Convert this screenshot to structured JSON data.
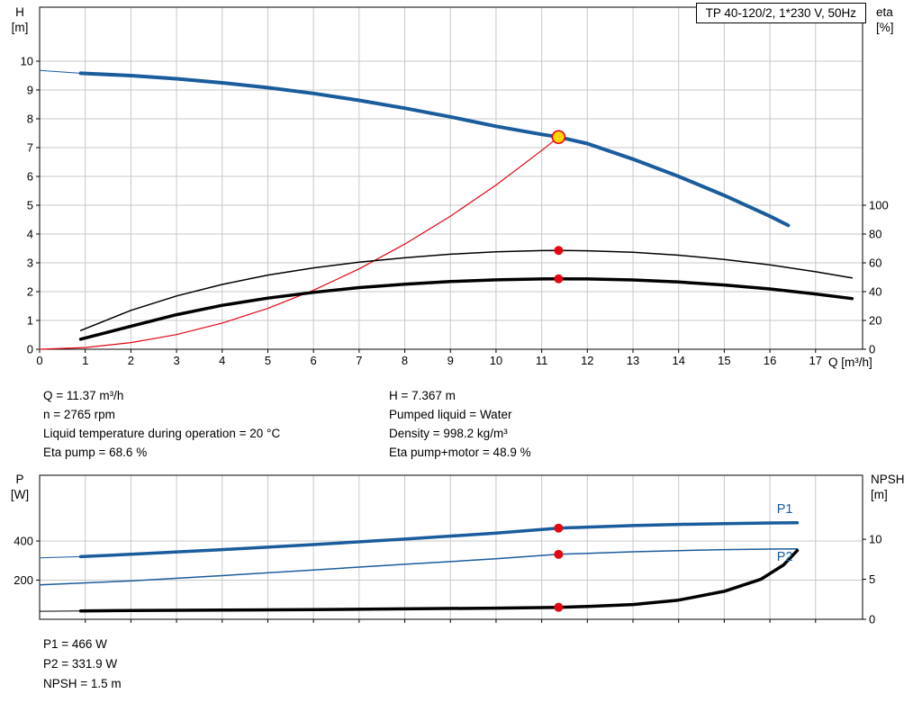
{
  "colors": {
    "blue": "#1a5c9c",
    "red": "#e30613",
    "black": "#000000",
    "grid": "#c8c8c8",
    "marker_red": "#e30613",
    "marker_yellow": "#ffd400"
  },
  "operating_point": {
    "left_column": [
      "Q = 11.37 m³/h",
      "n = 2765 rpm",
      "Liquid temperature during operation = 20 °C",
      "Eta pump = 68.6 %"
    ],
    "right_column": [
      "H = 7.367 m",
      "Pumped liquid = Water",
      "Density = 998.2 kg/m³",
      "Eta pump+motor = 48.9 %"
    ],
    "power_block": [
      "P1 = 466 W",
      "P2 = 331.9 W",
      "NPSH = 1.5 m"
    ]
  },
  "chart_data": [
    {
      "type": "line",
      "title": "TP 40-120/2, 1*230 V, 50Hz",
      "x_label": "Q [m³/h]",
      "y_left_label": "H\n[m]",
      "y_right_label": "eta\n[%]",
      "x_range": [
        0,
        18.03
      ],
      "y_left_range": [
        0,
        11.875
      ],
      "y_right_range": [
        0,
        237.5
      ],
      "x_ticks": [
        0,
        1,
        2,
        3,
        4,
        5,
        6,
        7,
        8,
        9,
        10,
        11,
        12,
        13,
        14,
        15,
        16,
        17
      ],
      "y_left_ticks": [
        0,
        1,
        2,
        3,
        4,
        5,
        6,
        7,
        8,
        9,
        10
      ],
      "y_right_ticks": [
        0,
        20,
        40,
        60,
        80,
        100
      ],
      "show_x_tick_labels": true,
      "grid": true,
      "series": [
        {
          "name": "hq-extrapolation",
          "axis": "left",
          "color": "blue",
          "width": 1,
          "points": [
            [
              0,
              9.68
            ],
            [
              0.9,
              9.58
            ]
          ]
        },
        {
          "name": "hq-curve",
          "axis": "left",
          "color": "blue",
          "width": 4,
          "points": [
            [
              0.9,
              9.58
            ],
            [
              2,
              9.5
            ],
            [
              3,
              9.39
            ],
            [
              4,
              9.25
            ],
            [
              5,
              9.08
            ],
            [
              6,
              8.88
            ],
            [
              7,
              8.64
            ],
            [
              8,
              8.37
            ],
            [
              9,
              8.07
            ],
            [
              10,
              7.74
            ],
            [
              11,
              7.46
            ],
            [
              11.37,
              7.37
            ],
            [
              12,
              7.14
            ],
            [
              13,
              6.6
            ],
            [
              14,
              6.0
            ],
            [
              15,
              5.34
            ],
            [
              16,
              4.62
            ],
            [
              16.4,
              4.3
            ]
          ]
        },
        {
          "name": "system-curve",
          "axis": "left",
          "color": "red",
          "width": 1.2,
          "points": [
            [
              0,
              0
            ],
            [
              1,
              0.06
            ],
            [
              2,
              0.23
            ],
            [
              3,
              0.51
            ],
            [
              4,
              0.91
            ],
            [
              5,
              1.42
            ],
            [
              6,
              2.05
            ],
            [
              7,
              2.79
            ],
            [
              8,
              3.65
            ],
            [
              9,
              4.62
            ],
            [
              10,
              5.7
            ],
            [
              11,
              6.9
            ],
            [
              11.37,
              7.37
            ]
          ]
        },
        {
          "name": "eta-pump-curve",
          "axis": "right",
          "color": "black",
          "width": 1.5,
          "points": [
            [
              0.9,
              13
            ],
            [
              2,
              27
            ],
            [
              3,
              37
            ],
            [
              4,
              45
            ],
            [
              5,
              51.5
            ],
            [
              6,
              56.5
            ],
            [
              7,
              60.5
            ],
            [
              8,
              63.5
            ],
            [
              9,
              66
            ],
            [
              10,
              67.6
            ],
            [
              11,
              68.5
            ],
            [
              11.37,
              68.6
            ],
            [
              12,
              68.4
            ],
            [
              13,
              67.3
            ],
            [
              14,
              65.3
            ],
            [
              15,
              62.4
            ],
            [
              16,
              58.6
            ],
            [
              17,
              53.8
            ],
            [
              17.8,
              49.5
            ]
          ]
        },
        {
          "name": "eta-pump-motor-curve",
          "axis": "right",
          "color": "black",
          "width": 3.5,
          "points": [
            [
              0.9,
              7
            ],
            [
              2,
              16
            ],
            [
              3,
              24
            ],
            [
              4,
              30.5
            ],
            [
              5,
              35.5
            ],
            [
              6,
              39.5
            ],
            [
              7,
              42.8
            ],
            [
              8,
              45.2
            ],
            [
              9,
              47
            ],
            [
              10,
              48.2
            ],
            [
              11,
              48.8
            ],
            [
              11.37,
              48.9
            ],
            [
              12,
              48.8
            ],
            [
              13,
              48.1
            ],
            [
              14,
              46.7
            ],
            [
              15,
              44.6
            ],
            [
              16,
              41.9
            ],
            [
              17,
              38.4
            ],
            [
              17.8,
              35.2
            ]
          ]
        }
      ],
      "markers": [
        {
          "x": 11.37,
          "y": 7.367,
          "axis": "left",
          "style": "duty",
          "name": "duty-point-marker"
        },
        {
          "x": 11.37,
          "y": 68.6,
          "axis": "right",
          "style": "dot",
          "name": "eta-pump-operating-dot"
        },
        {
          "x": 11.37,
          "y": 48.9,
          "axis": "right",
          "style": "dot",
          "name": "eta-pump-motor-operating-dot"
        }
      ],
      "curve_labels": []
    },
    {
      "type": "line",
      "title": "",
      "x_label": "",
      "y_left_label": "P\n[W]",
      "y_right_label": "NPSH\n[m]",
      "x_range": [
        0,
        18.03
      ],
      "y_left_range": [
        0,
        736
      ],
      "y_right_range": [
        0,
        18
      ],
      "x_ticks": [
        1,
        2,
        3,
        4,
        5,
        6,
        7,
        8,
        9,
        10,
        11,
        12,
        13,
        14,
        15,
        16,
        17
      ],
      "y_left_ticks": [
        200,
        400
      ],
      "y_right_ticks": [
        0,
        5,
        10
      ],
      "show_x_tick_labels": false,
      "grid": true,
      "series": [
        {
          "name": "p1-lead",
          "axis": "left",
          "color": "blue",
          "width": 1,
          "points": [
            [
              0,
              314
            ],
            [
              0.9,
              320
            ]
          ]
        },
        {
          "name": "p1-curve",
          "axis": "left",
          "color": "blue",
          "width": 3.5,
          "points": [
            [
              0.9,
              320
            ],
            [
              2,
              332
            ],
            [
              4,
              356
            ],
            [
              6,
              382
            ],
            [
              8,
              410
            ],
            [
              10,
              440
            ],
            [
              11.37,
              466
            ],
            [
              12,
              471
            ],
            [
              13,
              479
            ],
            [
              14,
              485
            ],
            [
              15,
              489
            ],
            [
              16,
              492
            ],
            [
              16.6,
              493
            ]
          ]
        },
        {
          "name": "p2-curve",
          "axis": "left",
          "color": "blue",
          "width": 1.5,
          "points": [
            [
              0,
              176
            ],
            [
              2,
              196
            ],
            [
              4,
              223
            ],
            [
              6,
              252
            ],
            [
              8,
              281
            ],
            [
              10,
              309
            ],
            [
              11.37,
              331.9
            ],
            [
              12,
              337
            ],
            [
              13,
              345
            ],
            [
              14,
              351
            ],
            [
              15,
              356
            ],
            [
              16,
              359
            ],
            [
              16.6,
              360
            ]
          ]
        },
        {
          "name": "npsh-lead",
          "axis": "right",
          "color": "black",
          "width": 1,
          "points": [
            [
              0,
              1.0
            ],
            [
              0.9,
              1.05
            ]
          ]
        },
        {
          "name": "npsh-curve",
          "axis": "right",
          "color": "black",
          "width": 3.5,
          "points": [
            [
              0.9,
              1.05
            ],
            [
              2,
              1.1
            ],
            [
              4,
              1.15
            ],
            [
              6,
              1.2
            ],
            [
              8,
              1.3
            ],
            [
              10,
              1.4
            ],
            [
              11.37,
              1.5
            ],
            [
              12,
              1.6
            ],
            [
              13,
              1.85
            ],
            [
              14,
              2.4
            ],
            [
              15,
              3.5
            ],
            [
              15.8,
              5.0
            ],
            [
              16.3,
              6.8
            ],
            [
              16.6,
              8.6
            ]
          ]
        }
      ],
      "markers": [
        {
          "x": 11.37,
          "y": 466,
          "axis": "left",
          "style": "dot",
          "name": "p1-operating-dot"
        },
        {
          "x": 11.37,
          "y": 331.9,
          "axis": "left",
          "style": "dot",
          "name": "p2-operating-dot"
        },
        {
          "x": 11.37,
          "y": 1.5,
          "axis": "right",
          "style": "dot",
          "name": "npsh-operating-dot"
        }
      ],
      "curve_labels": [
        {
          "text": "P1",
          "x": 16.15,
          "y": 543,
          "axis": "left"
        },
        {
          "text": "P2",
          "x": 16.15,
          "y": 299,
          "axis": "left"
        }
      ]
    }
  ]
}
